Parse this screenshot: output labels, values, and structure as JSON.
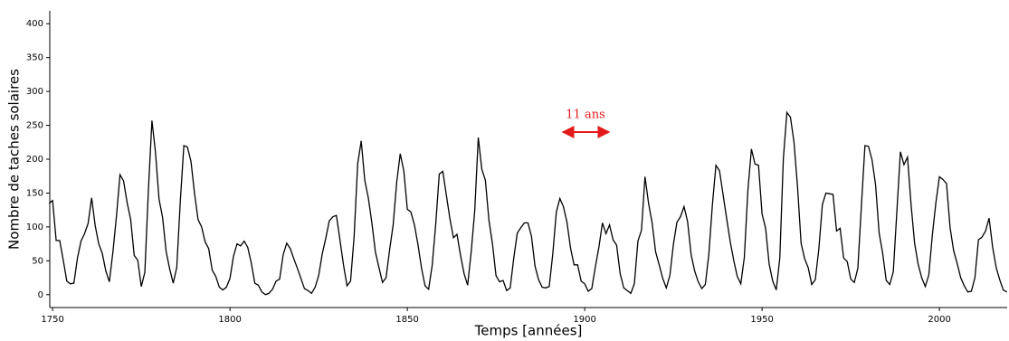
{
  "chart_data": {
    "type": "line",
    "xlabel": "Temps [années]",
    "ylabel": "Nombre de taches solaires",
    "annotation": "11 ans",
    "color": "#000000",
    "annotation_color": "#e31a1c",
    "xlim": [
      1749.2,
      2019.1
    ],
    "ylim": [
      -19,
      419
    ],
    "xticks": [
      1750,
      1800,
      1850,
      1900,
      1950,
      2000
    ],
    "yticks": [
      0,
      50,
      100,
      150,
      200,
      250,
      300,
      350,
      400
    ],
    "x": [
      1749,
      1750,
      1751,
      1752,
      1753,
      1754,
      1755,
      1756,
      1757,
      1758,
      1759,
      1760,
      1761,
      1762,
      1763,
      1764,
      1765,
      1766,
      1767,
      1768,
      1769,
      1770,
      1771,
      1772,
      1773,
      1774,
      1775,
      1776,
      1777,
      1778,
      1779,
      1780,
      1781,
      1782,
      1783,
      1784,
      1785,
      1786,
      1787,
      1788,
      1789,
      1790,
      1791,
      1792,
      1793,
      1794,
      1795,
      1796,
      1797,
      1798,
      1799,
      1800,
      1801,
      1802,
      1803,
      1804,
      1805,
      1806,
      1807,
      1808,
      1809,
      1810,
      1811,
      1812,
      1813,
      1814,
      1815,
      1816,
      1817,
      1818,
      1819,
      1820,
      1821,
      1822,
      1823,
      1824,
      1825,
      1826,
      1827,
      1828,
      1829,
      1830,
      1831,
      1832,
      1833,
      1834,
      1835,
      1836,
      1837,
      1838,
      1839,
      1840,
      1841,
      1842,
      1843,
      1844,
      1845,
      1846,
      1847,
      1848,
      1849,
      1850,
      1851,
      1852,
      1853,
      1854,
      1855,
      1856,
      1857,
      1858,
      1859,
      1860,
      1861,
      1862,
      1863,
      1864,
      1865,
      1866,
      1867,
      1868,
      1869,
      1870,
      1871,
      1872,
      1873,
      1874,
      1875,
      1876,
      1877,
      1878,
      1879,
      1880,
      1881,
      1882,
      1883,
      1884,
      1885,
      1886,
      1887,
      1888,
      1889,
      1890,
      1891,
      1892,
      1893,
      1894,
      1895,
      1896,
      1897,
      1898,
      1899,
      1900,
      1901,
      1902,
      1903,
      1904,
      1905,
      1906,
      1907,
      1908,
      1909,
      1910,
      1911,
      1912,
      1913,
      1914,
      1915,
      1916,
      1917,
      1918,
      1919,
      1920,
      1921,
      1922,
      1923,
      1924,
      1925,
      1926,
      1927,
      1928,
      1929,
      1930,
      1931,
      1932,
      1933,
      1934,
      1935,
      1936,
      1937,
      1938,
      1939,
      1940,
      1941,
      1942,
      1943,
      1944,
      1945,
      1946,
      1947,
      1948,
      1949,
      1950,
      1951,
      1952,
      1953,
      1954,
      1955,
      1956,
      1957,
      1958,
      1959,
      1960,
      1961,
      1962,
      1963,
      1964,
      1965,
      1966,
      1967,
      1968,
      1969,
      1970,
      1971,
      1972,
      1973,
      1974,
      1975,
      1976,
      1977,
      1978,
      1979,
      1980,
      1981,
      1982,
      1983,
      1984,
      1985,
      1986,
      1987,
      1988,
      1989,
      1990,
      1991,
      1992,
      1993,
      1994,
      1995,
      1996,
      1997,
      1998,
      1999,
      2000,
      2001,
      2002,
      2003,
      2004,
      2005,
      2006,
      2007,
      2008,
      2009,
      2010,
      2011,
      2012,
      2013,
      2014,
      2015,
      2016,
      2017,
      2018,
      2019
    ],
    "values": [
      135,
      139,
      80,
      80,
      51,
      20,
      16,
      17,
      54,
      79,
      90,
      105,
      143,
      102,
      75,
      61,
      35,
      19,
      63,
      116,
      177,
      168,
      136,
      111,
      58,
      51,
      12,
      33,
      154,
      257,
      210,
      141,
      114,
      64,
      38,
      17,
      40,
      138,
      220,
      218,
      197,
      150,
      111,
      100,
      78,
      68,
      36,
      27,
      11,
      7,
      11,
      24,
      57,
      75,
      72,
      79,
      70,
      47,
      17,
      14,
      4,
      0,
      2,
      8,
      20,
      23,
      59,
      76,
      68,
      53,
      39,
      24,
      9,
      6,
      2,
      11,
      28,
      60,
      83,
      109,
      115,
      117,
      81,
      44,
      13,
      20,
      86,
      193,
      227,
      169,
      143,
      106,
      63,
      40,
      18,
      25,
      66,
      103,
      166,
      208,
      183,
      126,
      122,
      103,
      74,
      39,
      13,
      8,
      43,
      104,
      178,
      182,
      147,
      112,
      84,
      89,
      58,
      31,
      14,
      63,
      124,
      232,
      185,
      169,
      110,
      75,
      28,
      19,
      21,
      6,
      10,
      54,
      91,
      99,
      106,
      106,
      86,
      42,
      22,
      11,
      10,
      12,
      60,
      122,
      142,
      130,
      107,
      69,
      44,
      44,
      20,
      16,
      5,
      9,
      41,
      70,
      106,
      90,
      103,
      81,
      73,
      31,
      10,
      6,
      2,
      16,
      79,
      95,
      174,
      135,
      106,
      63,
      44,
      24,
      10,
      28,
      74,
      107,
      115,
      130,
      108,
      59,
      35,
      19,
      9,
      15,
      60,
      133,
      191,
      183,
      148,
      113,
      79,
      51,
      27,
      16,
      55,
      154,
      215,
      193,
      191,
      119,
      98,
      45,
      20,
      7,
      54,
      201,
      269,
      262,
      225,
      159,
      76,
      53,
      40,
      15,
      22,
      67,
      133,
      150,
      149,
      148,
      94,
      98,
      54,
      49,
      23,
      18,
      39,
      131,
      220,
      219,
      199,
      162,
      91,
      61,
      21,
      15,
      34,
      123,
      211,
      192,
      203,
      133,
      76,
      45,
      25,
      12,
      29,
      88,
      136,
      174,
      170,
      164,
      99,
      65,
      46,
      25,
      13,
      4,
      5,
      25,
      81,
      85,
      94,
      113,
      70,
      40,
      22,
      7,
      4
    ]
  }
}
